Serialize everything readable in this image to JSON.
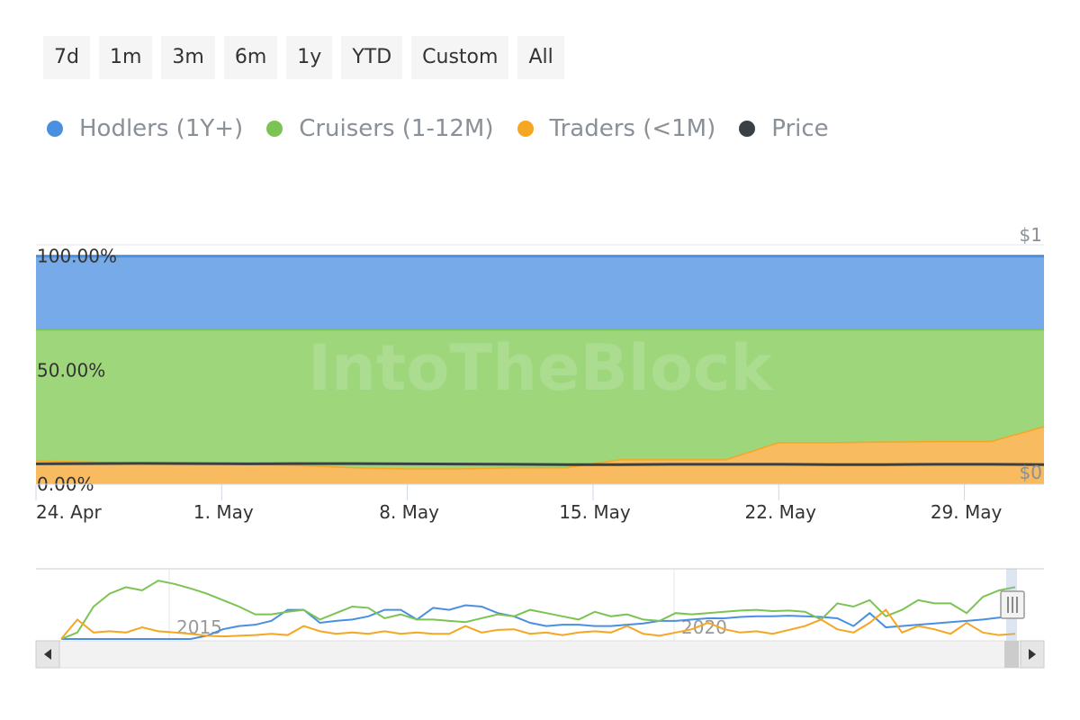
{
  "range_buttons": [
    "7d",
    "1m",
    "3m",
    "6m",
    "1y",
    "YTD",
    "Custom",
    "All"
  ],
  "legend": [
    {
      "label": "Hodlers (1Y+)",
      "color": "#4a8fe0"
    },
    {
      "label": "Cruisers (1-12M)",
      "color": "#7bc453"
    },
    {
      "label": "Traders (<1M)",
      "color": "#f5a623"
    },
    {
      "label": "Price",
      "color": "#3b4045"
    }
  ],
  "watermark": "IntoTheBlock",
  "chart_data": {
    "type": "area",
    "x": [
      "Apr 24",
      "Apr 26",
      "Apr 28",
      "Apr 30",
      "May 2",
      "May 4",
      "May 6",
      "May 8",
      "May 10",
      "May 12",
      "May 14",
      "May 16",
      "May 18",
      "May 20",
      "May 22",
      "May 24",
      "May 26",
      "May 28",
      "May 30",
      "Jun 1"
    ],
    "x_tick_labels": [
      "24. Apr",
      "1. May",
      "8. May",
      "15. May",
      "22. May",
      "29. May"
    ],
    "y_tick_labels": [
      "100.00%",
      "50.00%",
      "0.00%"
    ],
    "y_right_tick_labels": [
      "$1",
      "$0"
    ],
    "ylim": [
      0,
      105
    ],
    "stacked": true,
    "series": [
      {
        "name": "Traders (<1M)",
        "values": [
          10.5,
          10,
          9.5,
          9.5,
          9.2,
          8.5,
          7.5,
          7,
          7,
          7.5,
          7.5,
          11,
          11,
          11,
          18.5,
          18.5,
          18.8,
          19,
          19,
          25.5
        ]
      },
      {
        "name": "Cruisers (1-12M)",
        "values": [
          57.5,
          58,
          58.5,
          58.5,
          58.8,
          59.5,
          60.5,
          61,
          61,
          60.5,
          60.5,
          57,
          57,
          57,
          49.5,
          49.5,
          49.2,
          49,
          49,
          42.5
        ]
      },
      {
        "name": "Hodlers (1Y+)",
        "values": [
          32,
          32,
          32,
          32,
          32,
          32,
          32,
          32,
          32,
          32,
          32,
          32,
          32,
          32,
          32,
          32,
          32,
          32,
          32,
          32
        ]
      }
    ],
    "price": {
      "name": "Price",
      "values": [
        0.085,
        0.086,
        0.087,
        0.086,
        0.085,
        0.086,
        0.086,
        0.085,
        0.084,
        0.083,
        0.082,
        0.082,
        0.083,
        0.083,
        0.083,
        0.082,
        0.082,
        0.083,
        0.083,
        0.082
      ],
      "ylim": [
        0,
        1
      ]
    },
    "navigator": {
      "x_tick_labels": [
        "2015",
        "2020"
      ],
      "series": [
        {
          "name": "Hodlers (1Y+)",
          "values": [
            0,
            0,
            0,
            0,
            0,
            0,
            0,
            0,
            0,
            5,
            15,
            20,
            22,
            28,
            45,
            45,
            25,
            28,
            30,
            35,
            45,
            45,
            30,
            48,
            45,
            52,
            50,
            40,
            35,
            25,
            20,
            22,
            22,
            20,
            20,
            22,
            24,
            28,
            28,
            30,
            32,
            32,
            34,
            35,
            35,
            36,
            35,
            34,
            32,
            20,
            40,
            18,
            20,
            22,
            24,
            26,
            28,
            30,
            33,
            35
          ]
        },
        {
          "name": "Cruisers (1-12M)",
          "values": [
            0,
            10,
            50,
            70,
            80,
            75,
            90,
            85,
            78,
            70,
            60,
            50,
            38,
            38,
            42,
            45,
            30,
            40,
            50,
            48,
            32,
            38,
            30,
            30,
            28,
            26,
            32,
            38,
            35,
            45,
            40,
            35,
            30,
            42,
            35,
            38,
            30,
            28,
            40,
            38,
            40,
            42,
            44,
            45,
            43,
            44,
            42,
            30,
            55,
            50,
            60,
            35,
            45,
            60,
            55,
            55,
            40,
            65,
            75,
            80
          ]
        },
        {
          "name": "Traders (<1M)",
          "values": [
            0,
            30,
            10,
            12,
            10,
            18,
            12,
            10,
            8,
            5,
            4,
            5,
            6,
            8,
            6,
            20,
            12,
            8,
            10,
            8,
            12,
            8,
            10,
            8,
            8,
            20,
            10,
            14,
            15,
            8,
            10,
            6,
            10,
            12,
            10,
            20,
            8,
            5,
            10,
            15,
            25,
            15,
            10,
            12,
            8,
            14,
            20,
            30,
            15,
            10,
            25,
            45,
            10,
            20,
            15,
            8,
            25,
            10,
            6,
            8
          ]
        }
      ]
    },
    "grid": true
  }
}
